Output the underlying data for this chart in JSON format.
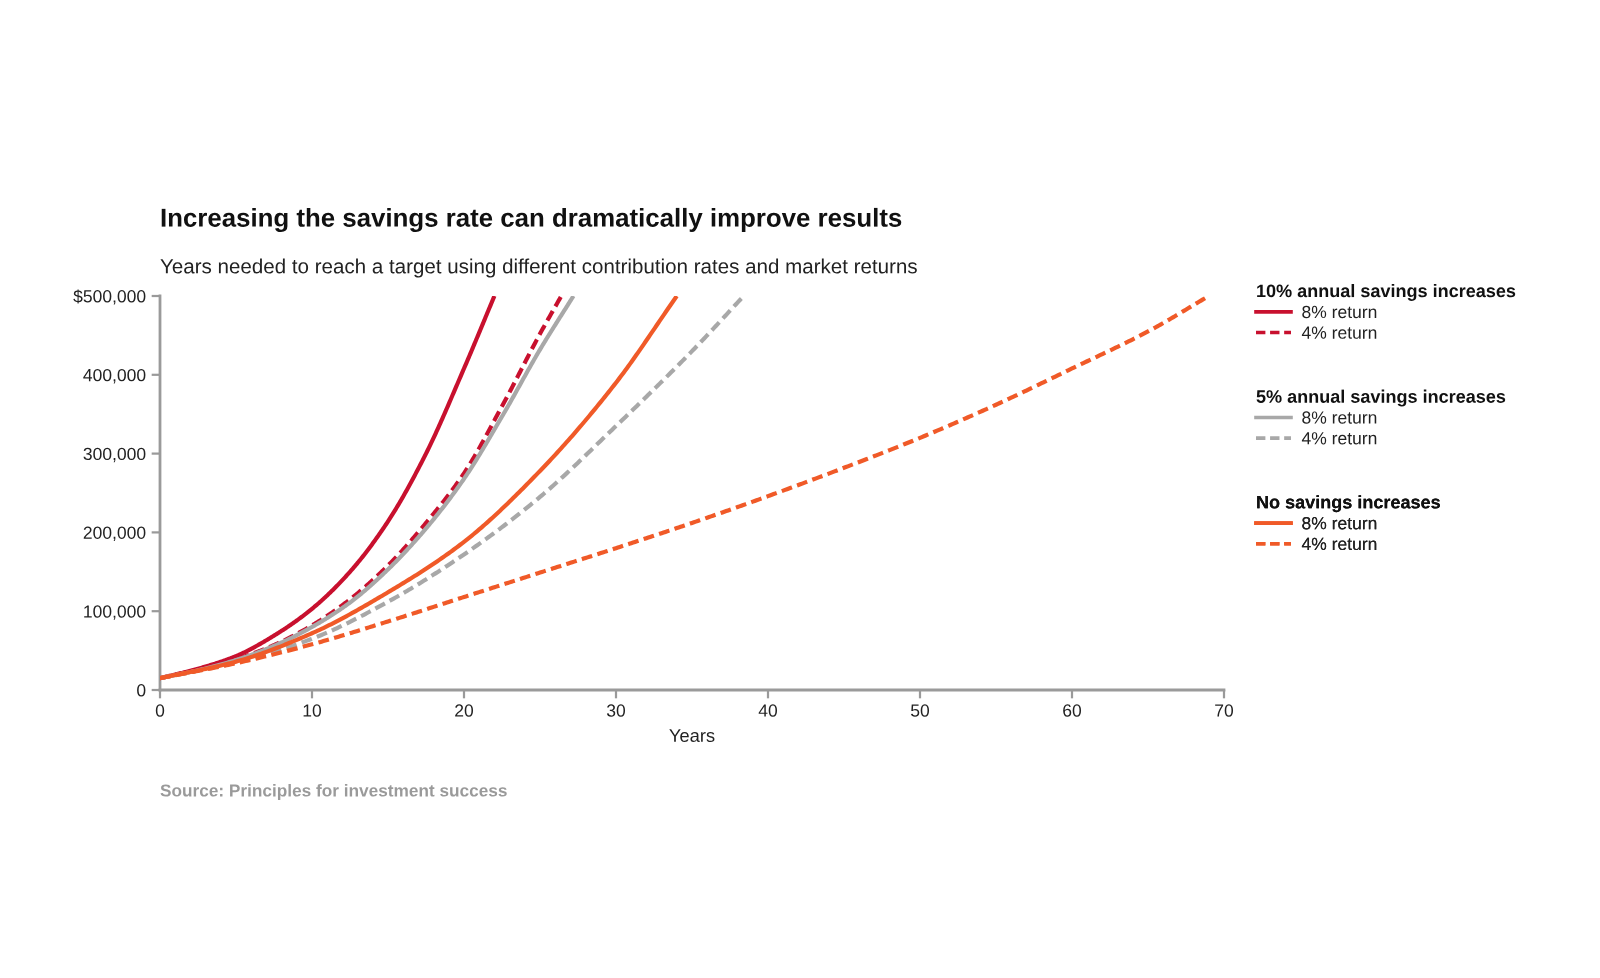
{
  "chart_data": {
    "type": "line",
    "title": "Increasing the savings rate can dramatically improve results",
    "subtitle": "Years needed to reach a target using different contribution rates and market returns",
    "xlabel": "Years",
    "legend": "right",
    "legend_title": [
      "10% annual savings increases",
      "5% annual savings increases",
      "No savings increases"
    ],
    "annotations": [
      "Source: Principles for investment success"
    ],
    "xlim": [
      0,
      70
    ],
    "xticks": [
      0,
      10,
      20,
      30,
      40,
      50,
      60,
      70
    ],
    "ylim": [
      0,
      500000
    ],
    "yticks": [
      0,
      {
        "value": 100000,
        "label": "100,000"
      },
      {
        "value": 200000,
        "label": "200,000"
      },
      {
        "value": 300000,
        "label": "300,000"
      },
      {
        "value": 400000,
        "label": "400,000"
      },
      {
        "value": 500000,
        "label": "$500,000"
      }
    ],
    "series": [
      {
        "name": "8% return",
        "color": "#c8102e",
        "line_style": "solid",
        "x": [
          0,
          2.5,
          5,
          7.5,
          10,
          12.5,
          15,
          17.5,
          20,
          22
        ],
        "values": [
          15000,
          27000,
          43000,
          69000,
          103000,
          150000,
          214000,
          300000,
          408000,
          500000
        ]
      },
      {
        "name": "4% return",
        "color": "#c8102e",
        "line_style": "dashed",
        "x": [
          0,
          2.5,
          5,
          7.5,
          10,
          12.5,
          15,
          17.5,
          20,
          22.5,
          25,
          26.4
        ],
        "values": [
          15000,
          26000,
          39000,
          57000,
          82000,
          115000,
          158000,
          212000,
          275000,
          360000,
          452000,
          500000
        ]
      },
      {
        "name": "8% return",
        "color": "#a8a8a8",
        "line_style": "solid",
        "x": [
          0,
          2.5,
          5,
          7.5,
          10,
          12.5,
          15,
          17.5,
          20,
          22.5,
          25,
          27.2
        ],
        "values": [
          15000,
          25000,
          38000,
          56000,
          80000,
          111000,
          153000,
          205000,
          268000,
          347000,
          432000,
          500000
        ]
      },
      {
        "name": "4% return",
        "color": "#a8a8a8",
        "line_style": "dashed",
        "x": [
          0,
          5,
          10,
          15,
          20,
          25,
          30,
          35,
          38.4
        ],
        "values": [
          15000,
          35000,
          65000,
          112000,
          172000,
          245000,
          335000,
          430000,
          500000
        ]
      },
      {
        "name": "8% return",
        "color": "#f05a28",
        "line_style": "solid",
        "x": [
          0,
          5,
          10,
          15,
          20,
          25,
          30,
          34
        ],
        "values": [
          15000,
          36000,
          72000,
          124000,
          188000,
          278000,
          390000,
          500000
        ]
      },
      {
        "name": "4% return",
        "color": "#f05a28",
        "line_style": "dashed",
        "x": [
          0,
          5,
          10,
          15,
          20,
          25,
          30,
          35,
          40,
          45,
          50,
          55,
          60,
          65,
          69
        ],
        "values": [
          15000,
          34000,
          58000,
          87000,
          118000,
          149000,
          180000,
          212000,
          246000,
          282000,
          320000,
          362000,
          408000,
          455000,
          500000
        ]
      }
    ]
  }
}
